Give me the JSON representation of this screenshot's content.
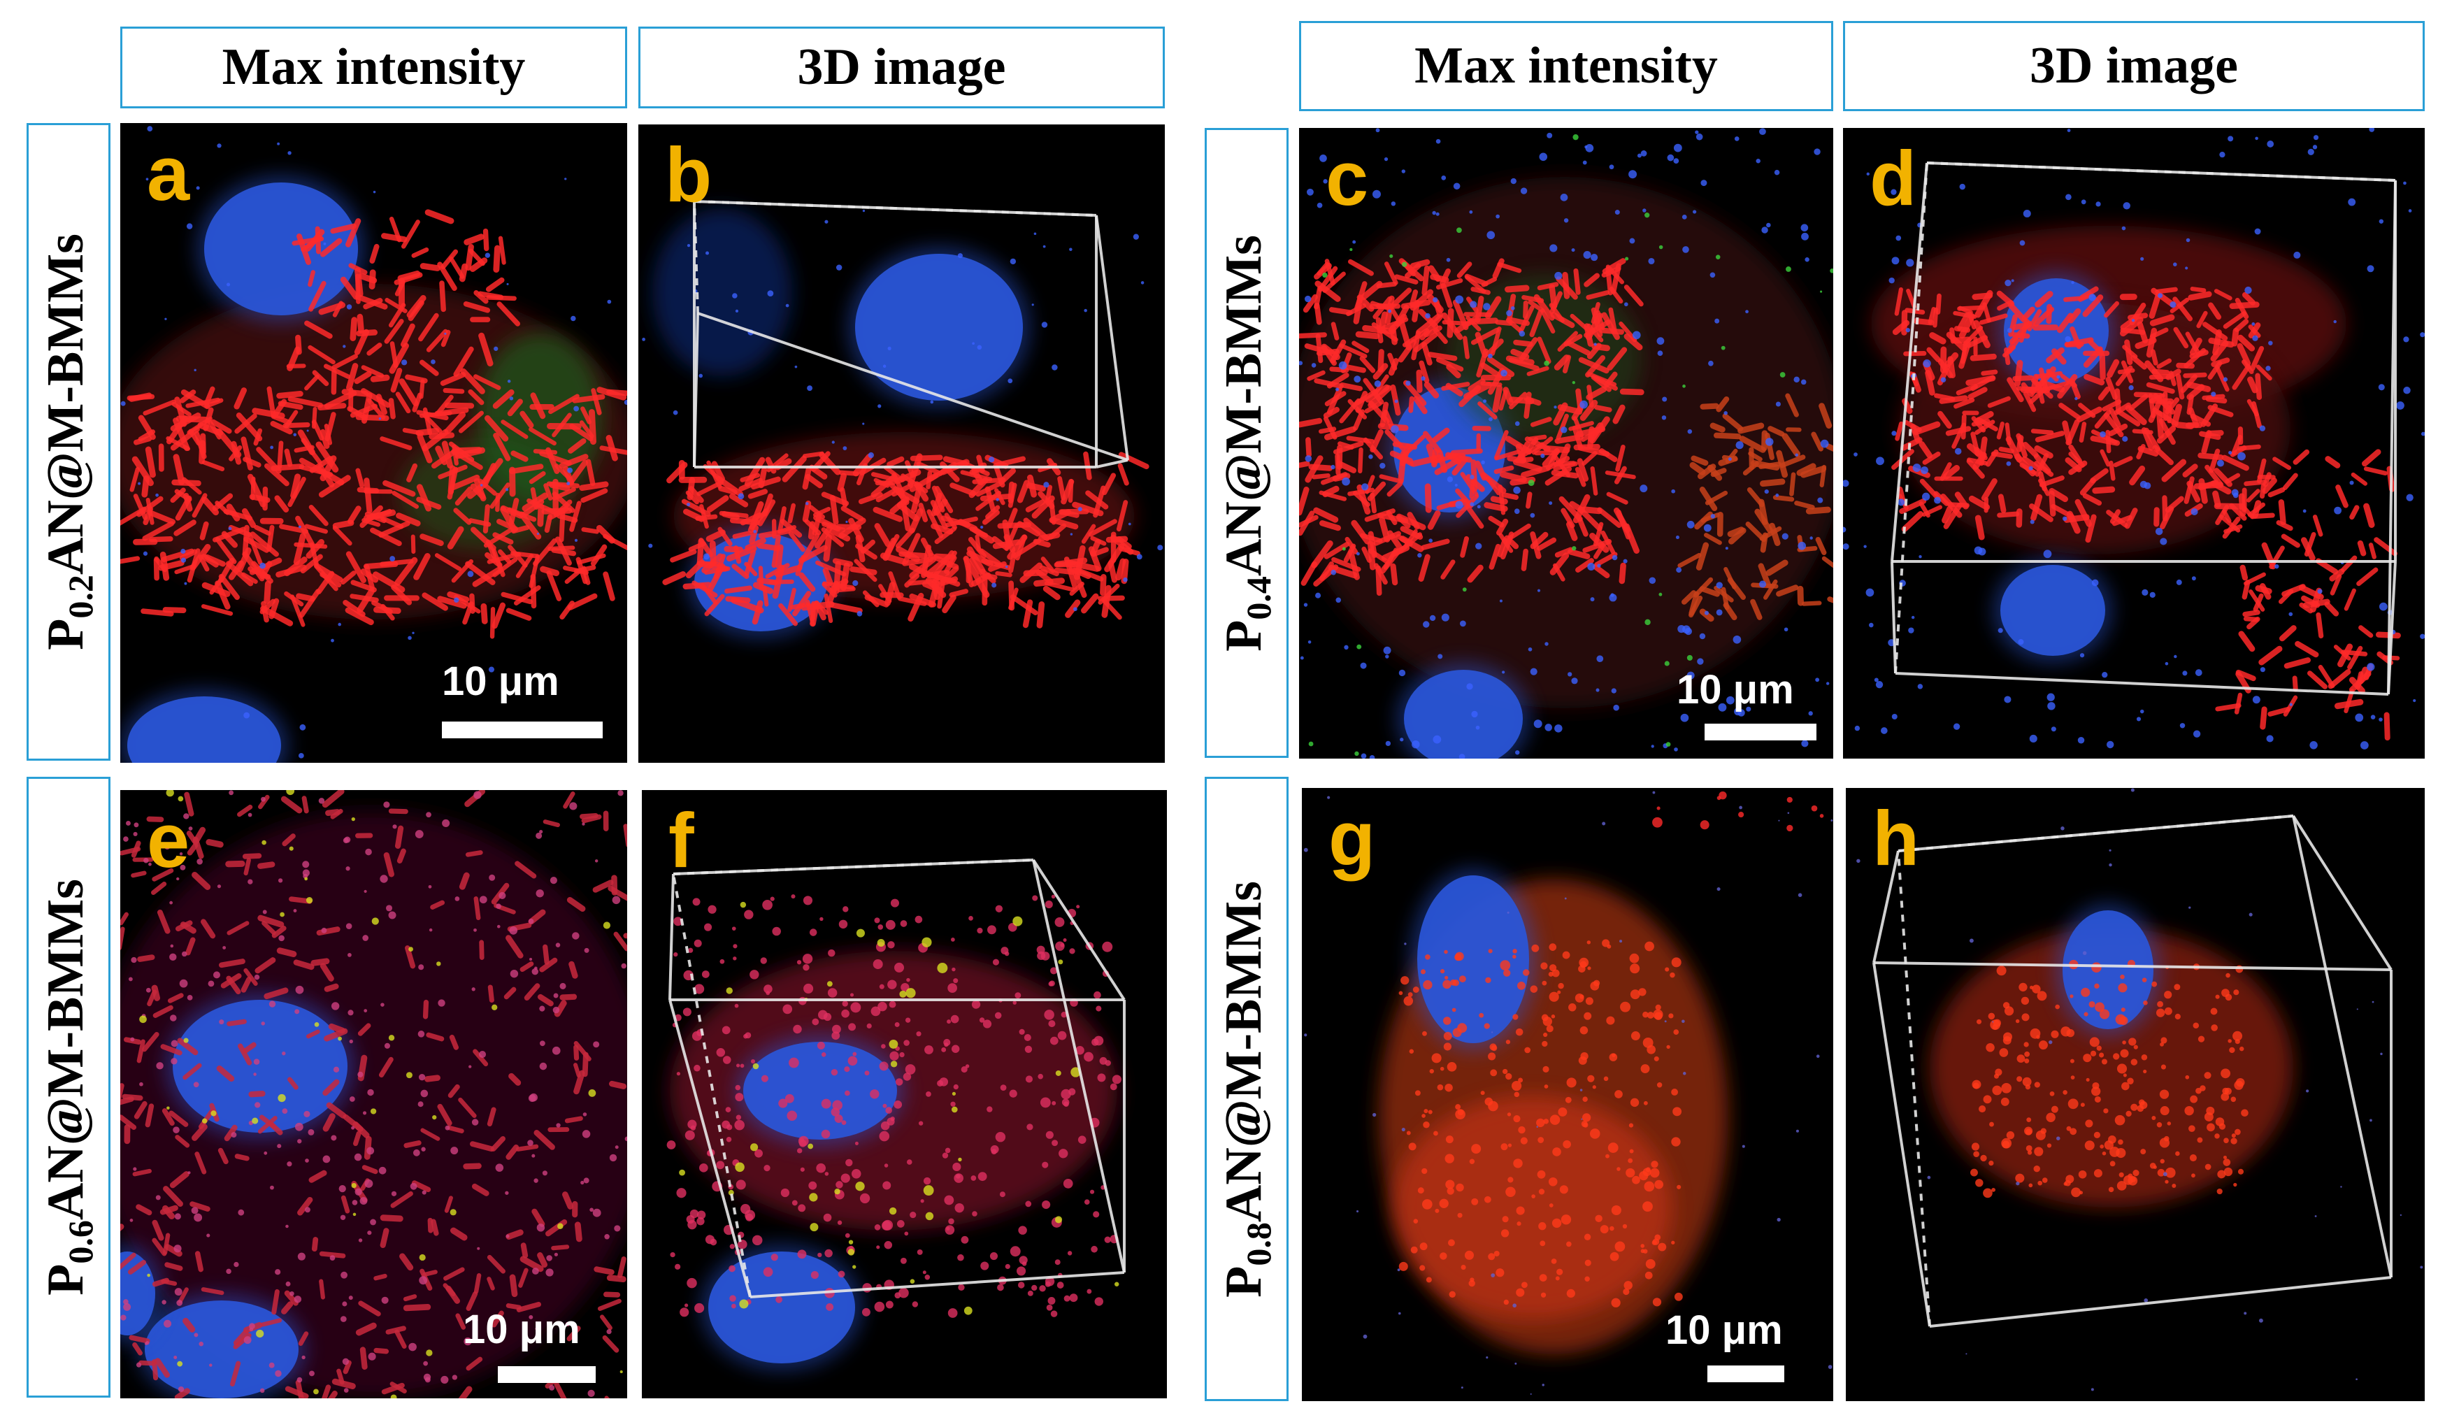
{
  "headers": {
    "left_max": "Max intensity",
    "left_3d": "3D image",
    "right_max": "Max intensity",
    "right_3d": "3D image"
  },
  "row_labels": {
    "p02": {
      "prefix": "P",
      "sub": "0.2",
      "rest": "AN@M-BMMs"
    },
    "p04": {
      "prefix": "P",
      "sub": "0.4",
      "rest": "AN@M-BMMs"
    },
    "p06": {
      "prefix": "P",
      "sub": "0.6",
      "rest": "AN@M-BMMs"
    },
    "p08": {
      "prefix": "P",
      "sub": "0.8",
      "rest": "AN@M-BMMs"
    }
  },
  "panels": {
    "a": {
      "letter": "a",
      "scale_bar": "10 μm"
    },
    "b": {
      "letter": "b"
    },
    "c": {
      "letter": "c",
      "scale_bar": "10 μm"
    },
    "d": {
      "letter": "d"
    },
    "e": {
      "letter": "e",
      "scale_bar": "10 μm"
    },
    "f": {
      "letter": "f"
    },
    "g": {
      "letter": "g",
      "scale_bar": "10 μm"
    },
    "h": {
      "letter": "h"
    }
  },
  "colors": {
    "border": "#2a9fd6",
    "panel_letter": "#f2b200",
    "nucleus": "#2a56d8",
    "bacteria": "#ff2a2a",
    "green_signal": "#3cd23c"
  }
}
